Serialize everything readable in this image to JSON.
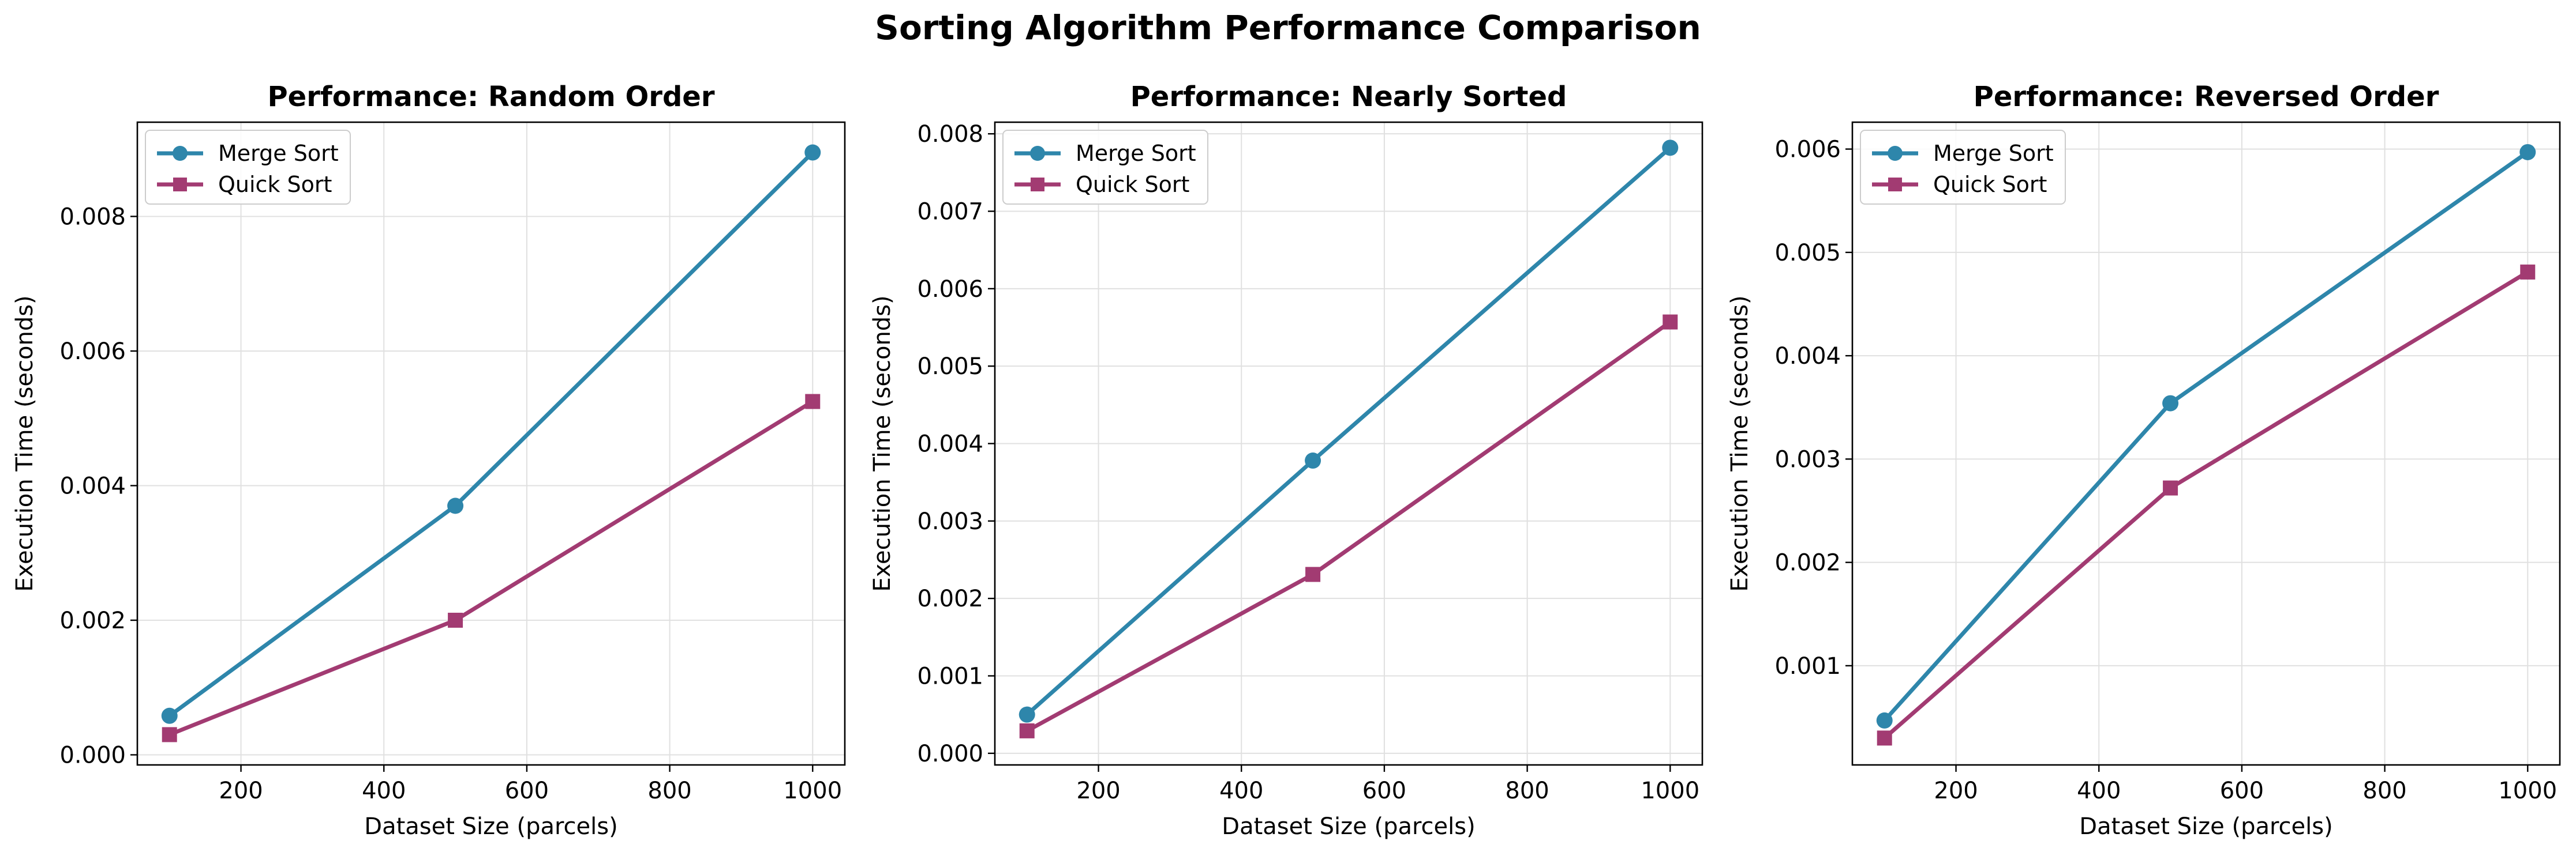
{
  "figure": {
    "title": "Sorting Algorithm Performance Comparison"
  },
  "colors": {
    "merge": "#2e86ab",
    "quick": "#a23b72",
    "grid": "#e0e0e0",
    "axis": "#000000"
  },
  "chart_data": [
    {
      "type": "line",
      "title": "Performance: Random Order",
      "xlabel": "Dataset Size (parcels)",
      "ylabel": "Execution Time (seconds)",
      "x": [
        100,
        500,
        1000
      ],
      "xlim": [
        55,
        1045
      ],
      "ylim": [
        -0.00015,
        0.0094
      ],
      "xticks": [
        200,
        400,
        600,
        800,
        1000
      ],
      "yticks": [
        0.0,
        0.002,
        0.004,
        0.006,
        0.008
      ],
      "ytick_labels": [
        "0.000",
        "0.002",
        "0.004",
        "0.006",
        "0.008"
      ],
      "grid": true,
      "legend": "upper left",
      "series": [
        {
          "name": "Merge Sort",
          "marker": "circle",
          "values": [
            0.00058,
            0.0037,
            0.00895
          ]
        },
        {
          "name": "Quick Sort",
          "marker": "square",
          "values": [
            0.0003,
            0.002,
            0.00525
          ]
        }
      ]
    },
    {
      "type": "line",
      "title": "Performance: Nearly Sorted",
      "xlabel": "Dataset Size (parcels)",
      "ylabel": "Execution Time (seconds)",
      "x": [
        100,
        500,
        1000
      ],
      "xlim": [
        55,
        1045
      ],
      "ylim": [
        -0.00015,
        0.00815
      ],
      "xticks": [
        200,
        400,
        600,
        800,
        1000
      ],
      "yticks": [
        0.0,
        0.001,
        0.002,
        0.003,
        0.004,
        0.005,
        0.006,
        0.007,
        0.008
      ],
      "ytick_labels": [
        "0.000",
        "0.001",
        "0.002",
        "0.003",
        "0.004",
        "0.005",
        "0.006",
        "0.007",
        "0.008"
      ],
      "grid": true,
      "legend": "upper left",
      "series": [
        {
          "name": "Merge Sort",
          "marker": "circle",
          "values": [
            0.0005,
            0.00378,
            0.00782
          ]
        },
        {
          "name": "Quick Sort",
          "marker": "square",
          "values": [
            0.00029,
            0.00231,
            0.00557
          ]
        }
      ]
    },
    {
      "type": "line",
      "title": "Performance: Reversed Order",
      "xlabel": "Dataset Size (parcels)",
      "ylabel": "Execution Time (seconds)",
      "x": [
        100,
        500,
        1000
      ],
      "xlim": [
        55,
        1045
      ],
      "ylim": [
        4e-05,
        0.00626
      ],
      "xticks": [
        200,
        400,
        600,
        800,
        1000
      ],
      "yticks": [
        0.001,
        0.002,
        0.003,
        0.004,
        0.005,
        0.006
      ],
      "ytick_labels": [
        "0.001",
        "0.002",
        "0.003",
        "0.004",
        "0.005",
        "0.006"
      ],
      "grid": true,
      "legend": "upper left",
      "series": [
        {
          "name": "Merge Sort",
          "marker": "circle",
          "values": [
            0.00047,
            0.00354,
            0.00597
          ]
        },
        {
          "name": "Quick Sort",
          "marker": "square",
          "values": [
            0.0003,
            0.00272,
            0.00481
          ]
        }
      ]
    }
  ]
}
